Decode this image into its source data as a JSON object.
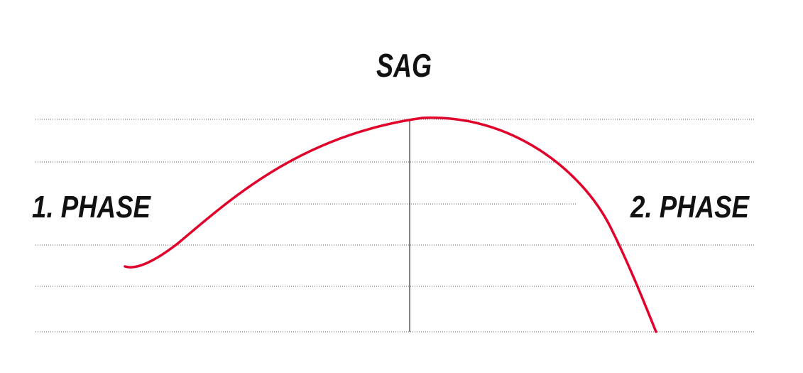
{
  "title": "SAG",
  "labels": {
    "left": "1. PHASE",
    "right": "2. PHASE"
  }
}
